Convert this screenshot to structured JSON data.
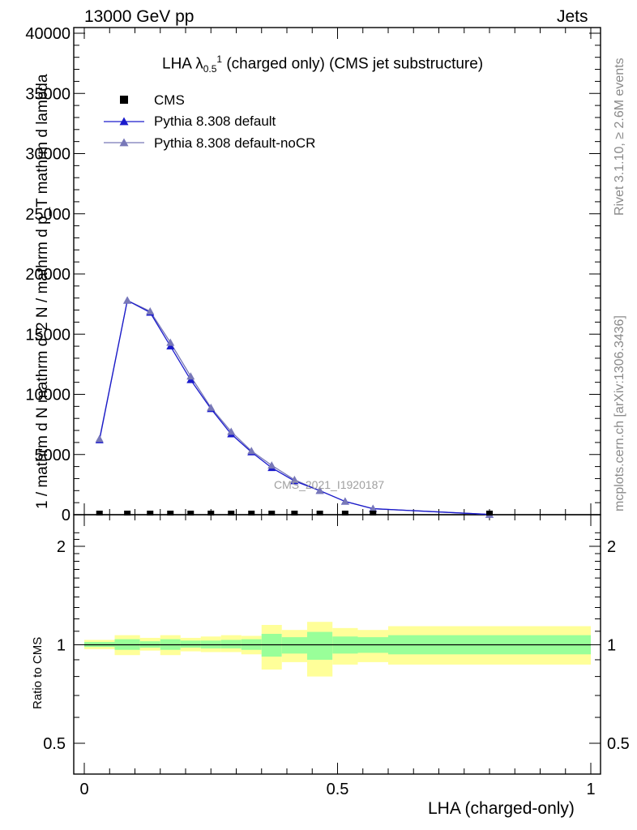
{
  "header": {
    "left": "13000 GeV pp",
    "right": "Jets"
  },
  "side_text": {
    "rivet": "Rivet 3.1.10, ≥ 2.6M events",
    "mcplots": "mcplots.cern.ch [arXiv:1306.3436]"
  },
  "watermark": "CMS_2021_I1920187",
  "title": {
    "base": "LHA λ",
    "sub": "0.5",
    "sup": "1",
    "rest": " (charged only) (CMS jet substructure)"
  },
  "legend": [
    "CMS",
    "Pythia 8.308 default",
    "Pythia 8.308 default-noCR"
  ],
  "colors": {
    "pythia_default": "#1a1acc",
    "pythia_nocr": "#7878b8",
    "band_inner": "#99ff99",
    "band_outer": "#ffff99"
  },
  "chart_data": [
    {
      "type": "line",
      "title": "LHA λ^1_0.5 (charged only) (CMS jet substructure)",
      "ylabel": "1 / mathrm d N   mathrm d^2 N / mathrm d p_T mathrm d lambda",
      "xlim": [
        0,
        1
      ],
      "ylim": [
        0,
        40000
      ],
      "yticks": [
        0,
        5000,
        10000,
        15000,
        20000,
        25000,
        30000,
        35000,
        40000
      ],
      "ytick_labels": [
        "0",
        "5000",
        "10000",
        "15000",
        "20000",
        "25000",
        "30000",
        "35000",
        "40000"
      ],
      "x": [
        0.03,
        0.085,
        0.13,
        0.17,
        0.21,
        0.25,
        0.29,
        0.33,
        0.37,
        0.415,
        0.465,
        0.515,
        0.57,
        0.8
      ],
      "series": [
        {
          "name": "CMS",
          "marker": "square",
          "values": [
            0,
            0,
            0,
            0,
            0,
            0,
            0,
            0,
            0,
            0,
            0,
            0,
            0,
            0
          ]
        },
        {
          "name": "Pythia 8.308 default",
          "marker": "triangle",
          "values": [
            6200,
            17800,
            16800,
            14000,
            11200,
            8800,
            6700,
            5200,
            3900,
            2800,
            2000,
            1100,
            500,
            20
          ]
        },
        {
          "name": "Pythia 8.308 default-noCR",
          "marker": "triangle",
          "values": [
            6300,
            17800,
            16900,
            14300,
            11500,
            8900,
            6900,
            5300,
            4100,
            2900,
            2000,
            1100,
            500,
            20
          ]
        }
      ]
    },
    {
      "type": "area",
      "xlabel": "LHA (charged-only)",
      "ylabel": "Ratio to CMS",
      "xlim": [
        0,
        1
      ],
      "ylim": [
        0.3,
        2.3
      ],
      "yticks": [
        0.5,
        1,
        2
      ],
      "ytick_labels": [
        "0.5",
        "1",
        "2"
      ],
      "xticks": [
        0,
        0.5,
        1
      ],
      "xtick_labels": [
        "0",
        "0.5",
        "1"
      ],
      "bins": [
        [
          0,
          0.06
        ],
        [
          0.06,
          0.11
        ],
        [
          0.11,
          0.15
        ],
        [
          0.15,
          0.19
        ],
        [
          0.19,
          0.23
        ],
        [
          0.23,
          0.27
        ],
        [
          0.27,
          0.31
        ],
        [
          0.31,
          0.35
        ],
        [
          0.35,
          0.39
        ],
        [
          0.39,
          0.44
        ],
        [
          0.44,
          0.49
        ],
        [
          0.49,
          0.54
        ],
        [
          0.54,
          0.6
        ],
        [
          0.6,
          1.0
        ]
      ],
      "inner_band": [
        [
          0.985,
          1.02
        ],
        [
          0.965,
          1.04
        ],
        [
          0.98,
          1.025
        ],
        [
          0.965,
          1.04
        ],
        [
          0.98,
          1.03
        ],
        [
          0.975,
          1.03
        ],
        [
          0.975,
          1.035
        ],
        [
          0.965,
          1.04
        ],
        [
          0.92,
          1.08
        ],
        [
          0.94,
          1.055
        ],
        [
          0.9,
          1.095
        ],
        [
          0.94,
          1.06
        ],
        [
          0.945,
          1.055
        ],
        [
          0.935,
          1.07
        ]
      ],
      "outer_band": [
        [
          0.97,
          1.035
        ],
        [
          0.93,
          1.07
        ],
        [
          0.96,
          1.05
        ],
        [
          0.93,
          1.07
        ],
        [
          0.955,
          1.05
        ],
        [
          0.95,
          1.06
        ],
        [
          0.95,
          1.07
        ],
        [
          0.935,
          1.065
        ],
        [
          0.84,
          1.15
        ],
        [
          0.885,
          1.11
        ],
        [
          0.8,
          1.175
        ],
        [
          0.87,
          1.125
        ],
        [
          0.885,
          1.11
        ],
        [
          0.87,
          1.14
        ]
      ],
      "reference": 1
    }
  ]
}
